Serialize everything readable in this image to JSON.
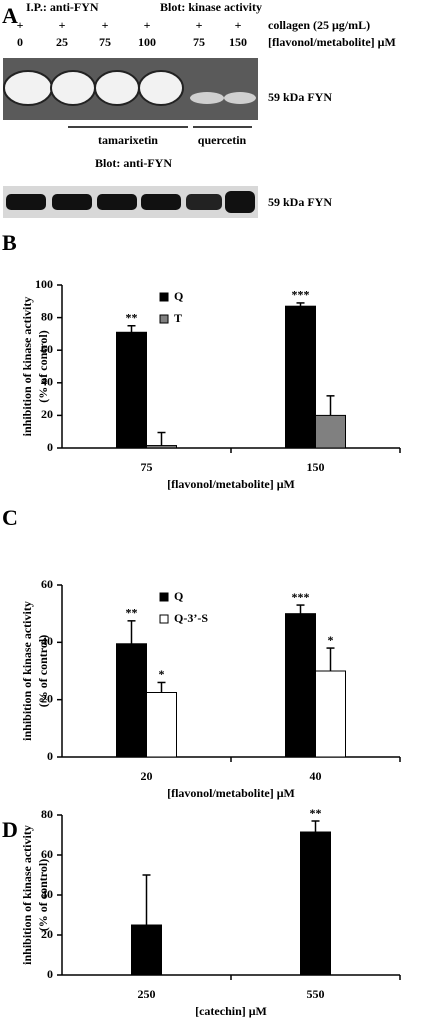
{
  "panel_a": {
    "label": "A",
    "ip": "I.P.: anti-FYN",
    "blot1": "Blot: kinase activity",
    "collagen_signs": [
      "+",
      "+",
      "+",
      "+",
      "+",
      "+"
    ],
    "collagen": "collagen (25 μg/mL)",
    "lanes": [
      0,
      25,
      75,
      100,
      75,
      150
    ],
    "conc_label": "[flavonol/metabolite] μM",
    "band1": "59 kDa FYN",
    "group1": "tamarixetin",
    "group2": "quercetin",
    "blot2": "Blot: anti-FYN",
    "band2": "59 kDa FYN"
  },
  "chart_data": [
    {
      "type": "bar",
      "label": "B",
      "ylabel": [
        "inhibition of kinase activity",
        "(% of control)"
      ],
      "xlabel": "[flavonol/metabolite] μM",
      "categories": [
        "75",
        "150"
      ],
      "series": [
        {
          "name": "Q",
          "color": "#000000",
          "values": [
            71,
            87
          ],
          "errors": [
            4,
            2
          ],
          "annotations": [
            "**",
            "***"
          ]
        },
        {
          "name": "T",
          "color": "#808080",
          "values": [
            1.5,
            20
          ],
          "errors": [
            8,
            12
          ]
        }
      ],
      "ylim": [
        0,
        100
      ],
      "yticks": [
        0,
        20,
        40,
        60,
        80,
        100
      ],
      "grid": false,
      "legend": "top-center"
    },
    {
      "type": "bar",
      "label": "C",
      "ylabel": [
        "inhibition of kinase activity",
        "(% of control)"
      ],
      "xlabel": "[flavonol/metabolite] μM",
      "categories": [
        "20",
        "40"
      ],
      "series": [
        {
          "name": "Q",
          "color": "#000000",
          "values": [
            39.5,
            50
          ],
          "errors": [
            8,
            3
          ],
          "annotations": [
            "**",
            "***"
          ]
        },
        {
          "name": "Q-3’-S",
          "color": "#ffffff",
          "values": [
            22.5,
            30
          ],
          "errors": [
            3.5,
            8
          ],
          "annotations": [
            "*",
            "*"
          ]
        }
      ],
      "ylim": [
        0,
        60
      ],
      "yticks": [
        0,
        20,
        40,
        60
      ],
      "grid": false,
      "legend": "top-center"
    },
    {
      "type": "bar",
      "label": "D",
      "ylabel": [
        "inhibition of kinase activity",
        "(% of control)"
      ],
      "xlabel": "[catechin] μM",
      "categories": [
        "250",
        "550"
      ],
      "series": [
        {
          "color": "#000000",
          "values": [
            25,
            71.5
          ],
          "errors": [
            25,
            5.5
          ],
          "annotations": [
            null,
            "**"
          ]
        }
      ],
      "ylim": [
        0,
        80
      ],
      "yticks": [
        0,
        20,
        40,
        60,
        80
      ],
      "grid": false
    }
  ]
}
